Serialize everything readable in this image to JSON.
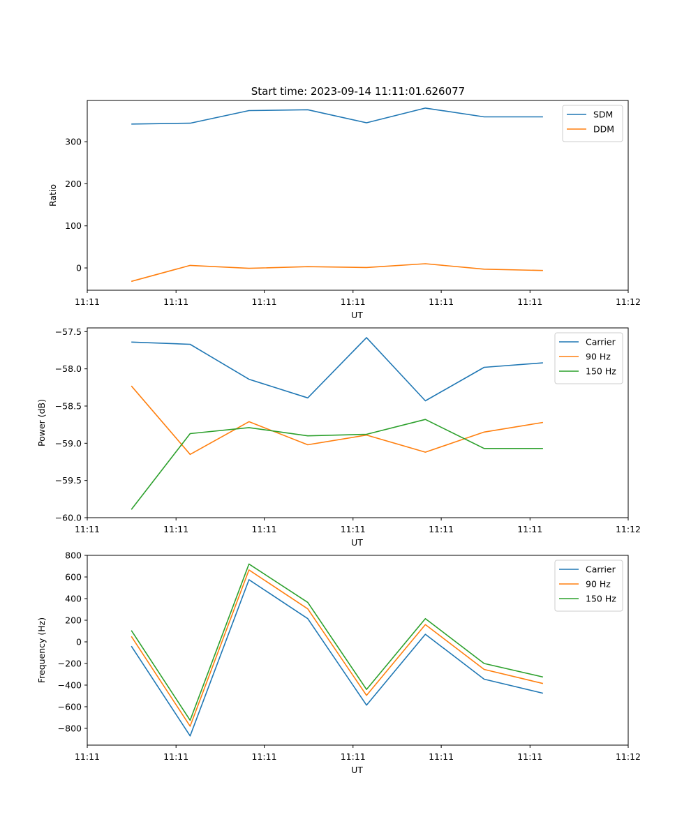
{
  "figure": {
    "title": "Start time: 2023-09-14 11:11:01.626077"
  },
  "chart_data": [
    {
      "type": "line",
      "ylabel": "Ratio",
      "xlabel": "UT",
      "x_index": [
        0,
        1,
        2,
        3,
        4,
        5,
        6,
        7
      ],
      "xlim": [
        -0.75,
        8.45
      ],
      "ylim": [
        -53,
        398
      ],
      "yticks": [
        0,
        100,
        200,
        300
      ],
      "xticks": [
        -0.75,
        0.76,
        2.26,
        3.77,
        5.27,
        6.78,
        8.45
      ],
      "xtick_labels": [
        "11:11",
        "11:11",
        "11:11",
        "11:11",
        "11:11",
        "11:11",
        "11:12"
      ],
      "legend": "top-right",
      "series": [
        {
          "name": "SDM",
          "color": "#1f77b4",
          "values": [
            342,
            344,
            374,
            376,
            345,
            380,
            359,
            359
          ]
        },
        {
          "name": "DDM",
          "color": "#ff7f0e",
          "values": [
            -32,
            6,
            -1,
            3,
            1,
            10,
            -3,
            -6
          ]
        }
      ]
    },
    {
      "type": "line",
      "ylabel": "Power (dB)",
      "xlabel": "UT",
      "x_index": [
        0,
        1,
        2,
        3,
        4,
        5,
        6,
        7
      ],
      "xlim": [
        -0.75,
        8.45
      ],
      "ylim": [
        -60.0,
        -57.45
      ],
      "yticks": [
        -60.0,
        -59.5,
        -59.0,
        -58.5,
        -58.0,
        -57.5
      ],
      "ytick_labels": [
        "−60.0",
        "−59.5",
        "−59.0",
        "−58.5",
        "−58.0",
        "−57.5"
      ],
      "xticks": [
        -0.75,
        0.76,
        2.26,
        3.77,
        5.27,
        6.78,
        8.45
      ],
      "xtick_labels": [
        "11:11",
        "11:11",
        "11:11",
        "11:11",
        "11:11",
        "11:11",
        "11:12"
      ],
      "legend": "top-right",
      "series": [
        {
          "name": "Carrier",
          "color": "#1f77b4",
          "values": [
            -57.64,
            -57.67,
            -58.14,
            -58.39,
            -57.58,
            -58.43,
            -57.98,
            -57.92
          ]
        },
        {
          "name": "90 Hz",
          "color": "#ff7f0e",
          "values": [
            -58.23,
            -59.15,
            -58.71,
            -59.02,
            -58.89,
            -59.12,
            -58.85,
            -58.72
          ]
        },
        {
          "name": "150 Hz",
          "color": "#2ca02c",
          "values": [
            -59.89,
            -58.87,
            -58.79,
            -58.9,
            -58.88,
            -58.68,
            -59.07,
            -59.07
          ]
        }
      ]
    },
    {
      "type": "line",
      "ylabel": "Frequency (Hz)",
      "xlabel": "UT",
      "x_index": [
        0,
        1,
        2,
        3,
        4,
        5,
        6,
        7
      ],
      "xlim": [
        -0.75,
        8.45
      ],
      "ylim": [
        -955,
        800
      ],
      "yticks": [
        -800,
        -600,
        -400,
        -200,
        0,
        200,
        400,
        600,
        800
      ],
      "ytick_labels": [
        "−800",
        "−600",
        "−400",
        "−200",
        "0",
        "200",
        "400",
        "600",
        "800"
      ],
      "xticks": [
        -0.75,
        0.76,
        2.26,
        3.77,
        5.27,
        6.78,
        8.45
      ],
      "xtick_labels": [
        "11:11",
        "11:11",
        "11:11",
        "11:11",
        "11:11",
        "11:11",
        "11:12"
      ],
      "legend": "top-right",
      "series": [
        {
          "name": "Carrier",
          "color": "#1f77b4",
          "values": [
            -40,
            -870,
            575,
            215,
            -585,
            70,
            -345,
            -475
          ]
        },
        {
          "name": "90 Hz",
          "color": "#ff7f0e",
          "values": [
            50,
            -780,
            665,
            305,
            -495,
            160,
            -255,
            -385
          ]
        },
        {
          "name": "150 Hz",
          "color": "#2ca02c",
          "values": [
            105,
            -725,
            720,
            365,
            -440,
            215,
            -200,
            -325
          ]
        }
      ]
    }
  ]
}
